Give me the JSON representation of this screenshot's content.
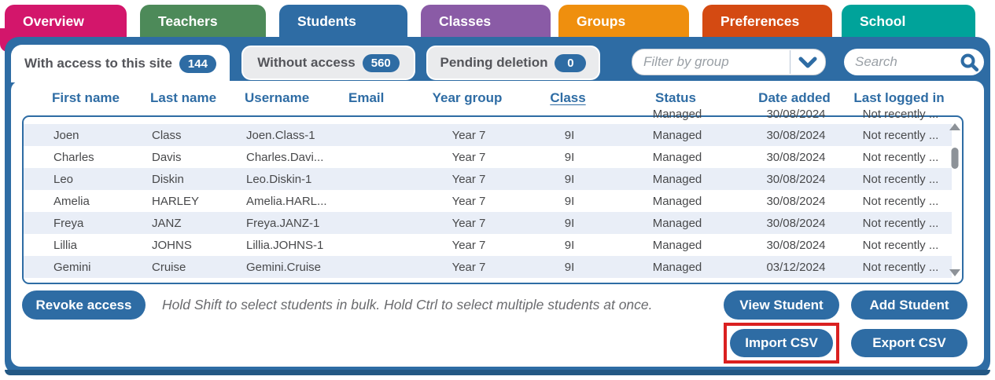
{
  "colors": {
    "panel_blue": "#2e6ca4",
    "alt_row": "#e9eef7",
    "annotation_red": "#da2020"
  },
  "tabs": [
    {
      "label": "Overview",
      "color": "#d3166b",
      "active": false
    },
    {
      "label": "Teachers",
      "color": "#4d8a59",
      "active": false
    },
    {
      "label": "Students",
      "color": "#2e6ca4",
      "active": true
    },
    {
      "label": "Classes",
      "color": "#8a5ba6",
      "active": false
    },
    {
      "label": "Groups",
      "color": "#ef8f0e",
      "active": false
    },
    {
      "label": "Preferences",
      "color": "#d44a12",
      "active": false
    },
    {
      "label": "School",
      "color": "#00a39a",
      "active": false
    }
  ],
  "subtabs": [
    {
      "label": "With access to this site",
      "count": "144",
      "active": true
    },
    {
      "label": "Without access",
      "count": "560",
      "active": false
    },
    {
      "label": "Pending deletion",
      "count": "0",
      "active": false
    }
  ],
  "filter": {
    "placeholder": "Filter by group"
  },
  "search": {
    "placeholder": "Search"
  },
  "table": {
    "headers": [
      "First name",
      "Last name",
      "Username",
      "Email",
      "Year group",
      "Class",
      "Status",
      "Date added",
      "Last logged in"
    ],
    "sorted_header": "Class",
    "partial_top_row": {
      "status": "Managed",
      "date_added": "30/08/2024",
      "last_logged_in": "Not recently ..."
    },
    "rows": [
      [
        "Joen",
        "Class",
        "Joen.Class-1",
        "",
        "Year 7",
        "9I",
        "Managed",
        "30/08/2024",
        "Not recently ..."
      ],
      [
        "Charles",
        "Davis",
        "Charles.Davi...",
        "",
        "Year 7",
        "9I",
        "Managed",
        "30/08/2024",
        "Not recently ..."
      ],
      [
        "Leo",
        "Diskin",
        "Leo.Diskin-1",
        "",
        "Year 7",
        "9I",
        "Managed",
        "30/08/2024",
        "Not recently ..."
      ],
      [
        "Amelia",
        "HARLEY",
        "Amelia.HARL...",
        "",
        "Year 7",
        "9I",
        "Managed",
        "30/08/2024",
        "Not recently ..."
      ],
      [
        "Freya",
        "JANZ",
        "Freya.JANZ-1",
        "",
        "Year 7",
        "9I",
        "Managed",
        "30/08/2024",
        "Not recently ..."
      ],
      [
        "Lillia",
        "JOHNS",
        "Lillia.JOHNS-1",
        "",
        "Year 7",
        "9I",
        "Managed",
        "30/08/2024",
        "Not recently ..."
      ],
      [
        "Gemini",
        "Cruise",
        "Gemini.Cruise",
        "",
        "Year 7",
        "9I",
        "Managed",
        "03/12/2024",
        "Not recently ..."
      ]
    ]
  },
  "actions": {
    "revoke": "Revoke access",
    "hint": "Hold Shift to select students in bulk. Hold Ctrl to select multiple students at once.",
    "view": "View Student",
    "add": "Add Student",
    "import": "Import CSV",
    "export": "Export CSV"
  }
}
